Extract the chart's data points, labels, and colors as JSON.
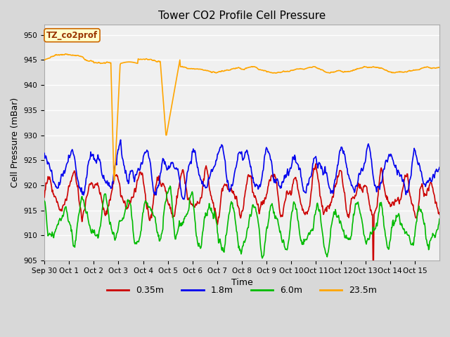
{
  "title": "Tower CO2 Profile Cell Pressure",
  "ylabel": "Cell Pressure (mBar)",
  "xlabel": "Time",
  "ylim": [
    905,
    952
  ],
  "yticks": [
    905,
    910,
    915,
    920,
    925,
    930,
    935,
    940,
    945,
    950
  ],
  "fig_bg_color": "#d8d8d8",
  "plot_bg_color": "#f0f0f0",
  "legend_label": "TZ_co2prof",
  "colors": {
    "0.35m": "#cc0000",
    "1.8m": "#0000ee",
    "6.0m": "#00bb00",
    "23.5m": "#ffa500"
  },
  "line_width": 1.2,
  "grid_color": "#ffffff",
  "title_fontsize": 11,
  "label_fontsize": 9,
  "tick_fontsize": 7.5,
  "xtick_labels": [
    "Sep 30",
    "Oct 1",
    "Oct 2",
    "Oct 3",
    "Oct 4",
    "Oct 5",
    "Oct 6",
    "Oct 7",
    "Oct 8",
    "Oct 9",
    "Oct 10",
    "Oct 11",
    "Oct 12",
    "Oct 13",
    "Oct 14",
    "Oct 15"
  ]
}
